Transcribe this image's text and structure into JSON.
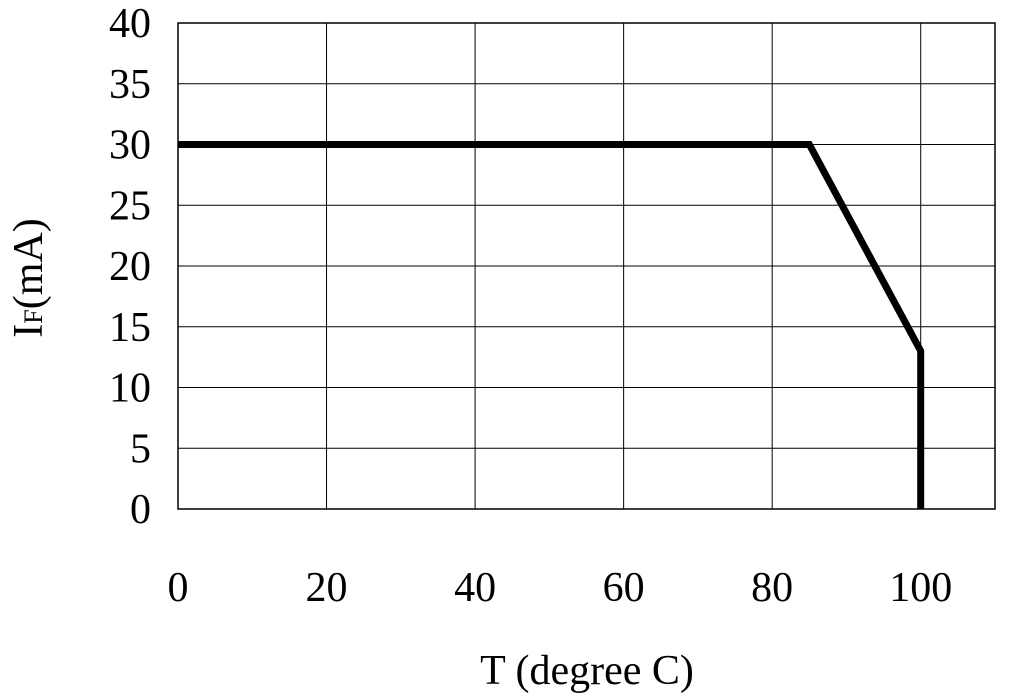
{
  "chart_data": {
    "type": "line",
    "xlabel": "T (degree C)",
    "ylabel": {
      "main": "I",
      "subscript": "F",
      "suffix": "(mA)"
    },
    "xlim": [
      0,
      110
    ],
    "ylim": [
      0,
      40
    ],
    "x_ticks": [
      0,
      20,
      40,
      60,
      80,
      100
    ],
    "y_ticks": [
      0,
      5,
      10,
      15,
      20,
      25,
      30,
      35,
      40
    ],
    "x_tick_labels": [
      "0",
      "20",
      "40",
      "60",
      "80",
      "100"
    ],
    "y_tick_labels": [
      "0",
      "5",
      "10",
      "15",
      "20",
      "25",
      "30",
      "35",
      "40"
    ],
    "grid": true,
    "series": [
      {
        "x": [
          0,
          85,
          100,
          100
        ],
        "y": [
          30,
          30,
          13,
          0
        ],
        "color": "#000000"
      }
    ]
  }
}
